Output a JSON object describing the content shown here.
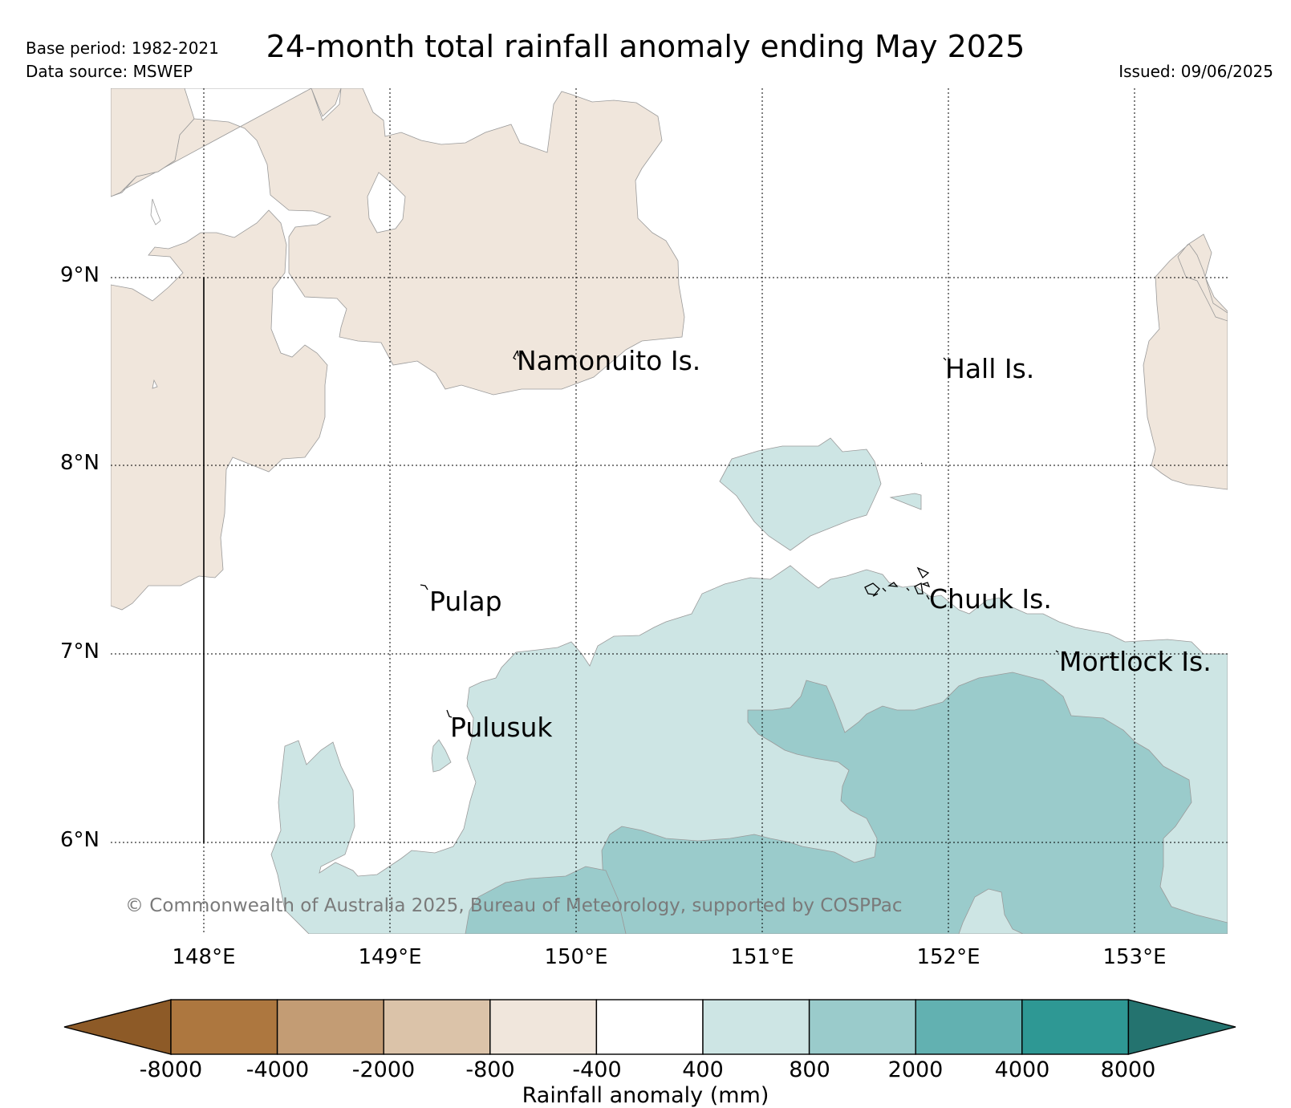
{
  "header": {
    "title": "24-month total rainfall anomaly ending May 2025",
    "base_period": "Base period: 1982-2021",
    "data_source": "Data source: MSWEP",
    "issued": "Issued: 09/06/2025"
  },
  "map": {
    "latitude_labels": [
      "9°N",
      "8°N",
      "7°N",
      "6°N"
    ],
    "longitude_labels": [
      "148°E",
      "149°E",
      "150°E",
      "151°E",
      "152°E",
      "153°E"
    ],
    "places": [
      {
        "name": "Namonuito Is."
      },
      {
        "name": "Hall Is."
      },
      {
        "name": "Pulap"
      },
      {
        "name": "Chuuk Is."
      },
      {
        "name": "Mortlock Is."
      },
      {
        "name": "Pulusuk"
      }
    ],
    "copyright": "© Commonwealth of Australia 2025, Bureau of Meteorology, supported by COSPPac",
    "class_colors": {
      "-800_to_-400": "#f0e6dc",
      "-400_to_400": "#ffffff",
      "400_to_800": "#cde5e4",
      "800_to_2000": "#9acbcb"
    }
  },
  "colorbar": {
    "title": "Rainfall anomaly (mm)",
    "labels": [
      "-8000",
      "-4000",
      "-2000",
      "-800",
      "-400",
      "400",
      "800",
      "2000",
      "4000",
      "8000"
    ],
    "colors": [
      "#8d5a27",
      "#ad773f",
      "#c39c74",
      "#dbc3a9",
      "#f0e6dc",
      "#ffffff",
      "#cde5e4",
      "#9acbcb",
      "#62b1b1",
      "#2e9894",
      "#24736f"
    ]
  },
  "chart_data": {
    "type": "heatmap",
    "title": "24-month total rainfall anomaly ending May 2025",
    "xlabel": "",
    "ylabel": "",
    "xlim": [
      147.5,
      153.5
    ],
    "ylim": [
      5.5,
      10.0
    ],
    "x_ticks": [
      "148°E",
      "149°E",
      "150°E",
      "151°E",
      "152°E",
      "153°E"
    ],
    "y_ticks": [
      "6°N",
      "7°N",
      "8°N",
      "9°N"
    ],
    "grid": true,
    "colorbar_levels_mm": [
      -8000,
      -4000,
      -2000,
      -800,
      -400,
      400,
      800,
      2000,
      4000,
      8000
    ],
    "colorbar_title": "Rainfall anomaly (mm)",
    "regions_present": [
      "-800 to -400",
      "-400 to 400",
      "400 to 800",
      "800 to 2000"
    ]
  }
}
